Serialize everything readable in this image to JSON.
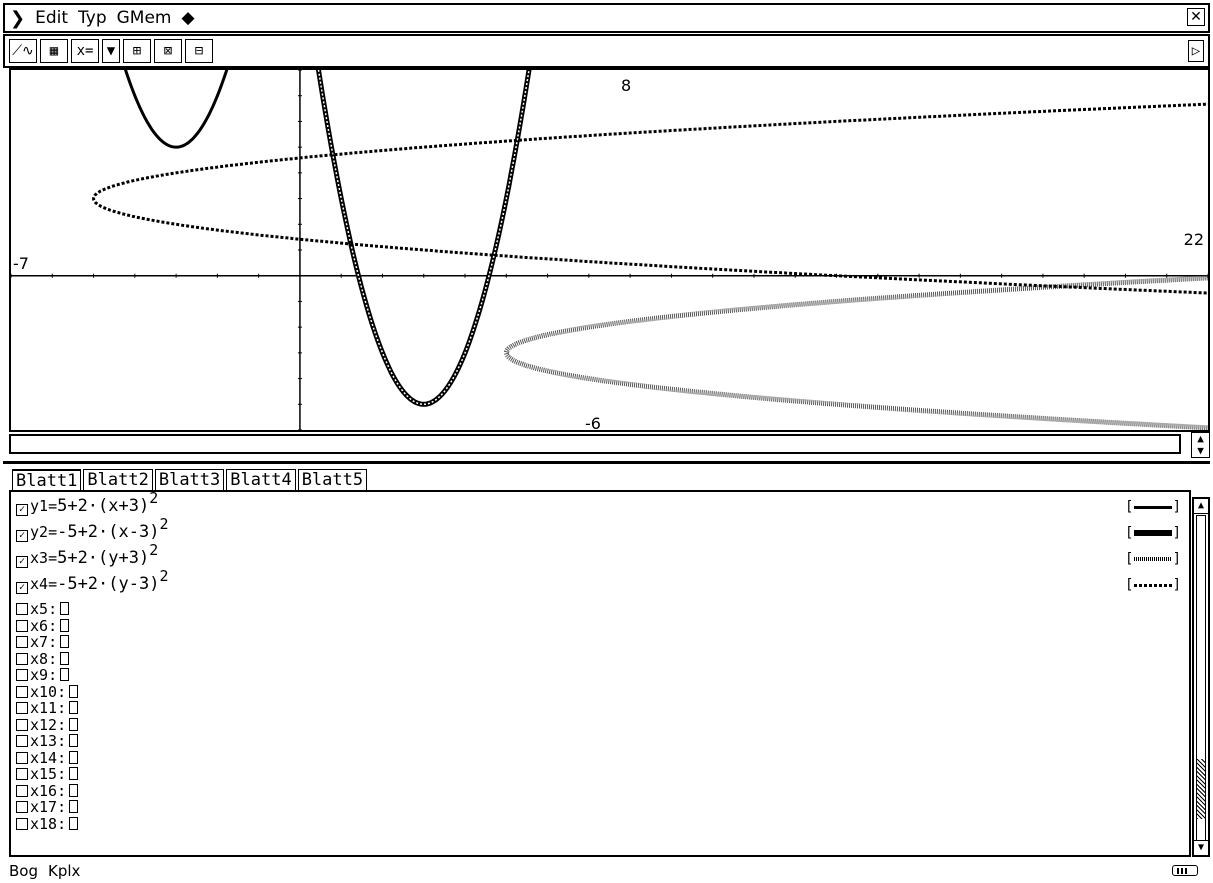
{
  "menubar": {
    "menu_icon": "menu-chevron-icon",
    "items": [
      "Edit",
      "Typ",
      "GMem"
    ],
    "diamond": "◆",
    "close_label": "✕"
  },
  "toolbar": {
    "buttons": [
      {
        "name": "graph-window-icon",
        "label": "⟋∿"
      },
      {
        "name": "table-icon",
        "label": "▦"
      },
      {
        "name": "x-equals-type-button",
        "label": "x="
      },
      {
        "name": "dropdown-arrow-icon",
        "label": "▼"
      },
      {
        "name": "zoom-in-icon",
        "label": "⊞"
      },
      {
        "name": "zoom-box-icon",
        "label": "⊠"
      },
      {
        "name": "zoom-fit-icon",
        "label": "⊟"
      }
    ],
    "more_label": "▷"
  },
  "graph": {
    "labels": {
      "top": "8",
      "right": "22",
      "left": "-7",
      "bottom": "-6"
    }
  },
  "chart_data": {
    "type": "line",
    "xlim": [
      -7,
      22
    ],
    "ylim": [
      -6,
      8
    ],
    "series": [
      {
        "name": "y1",
        "kind": "y",
        "formula": "5+2(x+3)^2",
        "style": "thick-solid"
      },
      {
        "name": "y2",
        "kind": "y",
        "formula": "-5+2(x-3)^2",
        "style": "thick-double"
      },
      {
        "name": "x3",
        "kind": "x",
        "formula": "5+2(y+3)^2",
        "style": "thick-grey"
      },
      {
        "name": "x4",
        "kind": "x",
        "formula": "-5+2(y-3)^2",
        "style": "dotted"
      }
    ]
  },
  "tabs": [
    "Blatt1",
    "Blatt2",
    "Blatt3",
    "Blatt4",
    "Blatt5"
  ],
  "functions": [
    {
      "var": "y1",
      "checked": true,
      "expr": "5+2·(x+3)",
      "exp": "2",
      "style": "thick-solid"
    },
    {
      "var": "y2",
      "checked": true,
      "expr": "-5+2·(x-3)",
      "exp": "2",
      "style": "thick-double"
    },
    {
      "var": "x3",
      "checked": true,
      "expr": "5+2·(y+3)",
      "exp": "2",
      "style": "thick-grey"
    },
    {
      "var": "x4",
      "checked": true,
      "expr": "-5+2·(y-3)",
      "exp": "2",
      "style": "dotted"
    },
    {
      "var": "x5",
      "checked": false
    },
    {
      "var": "x6",
      "checked": false
    },
    {
      "var": "x7",
      "checked": false
    },
    {
      "var": "x8",
      "checked": false
    },
    {
      "var": "x9",
      "checked": false
    },
    {
      "var": "x10",
      "checked": false
    },
    {
      "var": "x11",
      "checked": false
    },
    {
      "var": "x12",
      "checked": false
    },
    {
      "var": "x13",
      "checked": false
    },
    {
      "var": "x14",
      "checked": false
    },
    {
      "var": "x15",
      "checked": false
    },
    {
      "var": "x16",
      "checked": false
    },
    {
      "var": "x17",
      "checked": false
    },
    {
      "var": "x18",
      "checked": false
    }
  ],
  "scrollbar": {
    "position": 0.92
  },
  "statusbar": {
    "mode1": "Bog",
    "mode2": "Kplx"
  }
}
